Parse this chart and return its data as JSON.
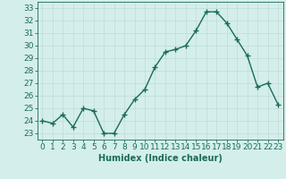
{
  "x": [
    0,
    1,
    2,
    3,
    4,
    5,
    6,
    7,
    8,
    9,
    10,
    11,
    12,
    13,
    14,
    15,
    16,
    17,
    18,
    19,
    20,
    21,
    22,
    23
  ],
  "y": [
    24.0,
    23.8,
    24.5,
    23.5,
    25.0,
    24.8,
    23.0,
    23.0,
    24.5,
    25.7,
    26.5,
    28.3,
    29.5,
    29.7,
    30.0,
    31.2,
    32.7,
    32.7,
    31.8,
    30.5,
    29.2,
    26.7,
    27.0,
    25.3
  ],
  "line_color": "#1a6b5a",
  "marker": "+",
  "marker_size": 4,
  "line_width": 1.0,
  "xlabel": "Humidex (Indice chaleur)",
  "xlim": [
    -0.5,
    23.5
  ],
  "ylim": [
    22.5,
    33.5
  ],
  "yticks": [
    23,
    24,
    25,
    26,
    27,
    28,
    29,
    30,
    31,
    32,
    33
  ],
  "xtick_labels": [
    "0",
    "1",
    "2",
    "3",
    "4",
    "5",
    "6",
    "7",
    "8",
    "9",
    "10",
    "11",
    "12",
    "13",
    "14",
    "15",
    "16",
    "17",
    "18",
    "19",
    "20",
    "21",
    "22",
    "23"
  ],
  "bg_color": "#d4eeeb",
  "grid_color": "#c0dbd8",
  "xlabel_fontsize": 7,
  "tick_fontsize": 6.5,
  "marker_color": "#1a6b5a"
}
